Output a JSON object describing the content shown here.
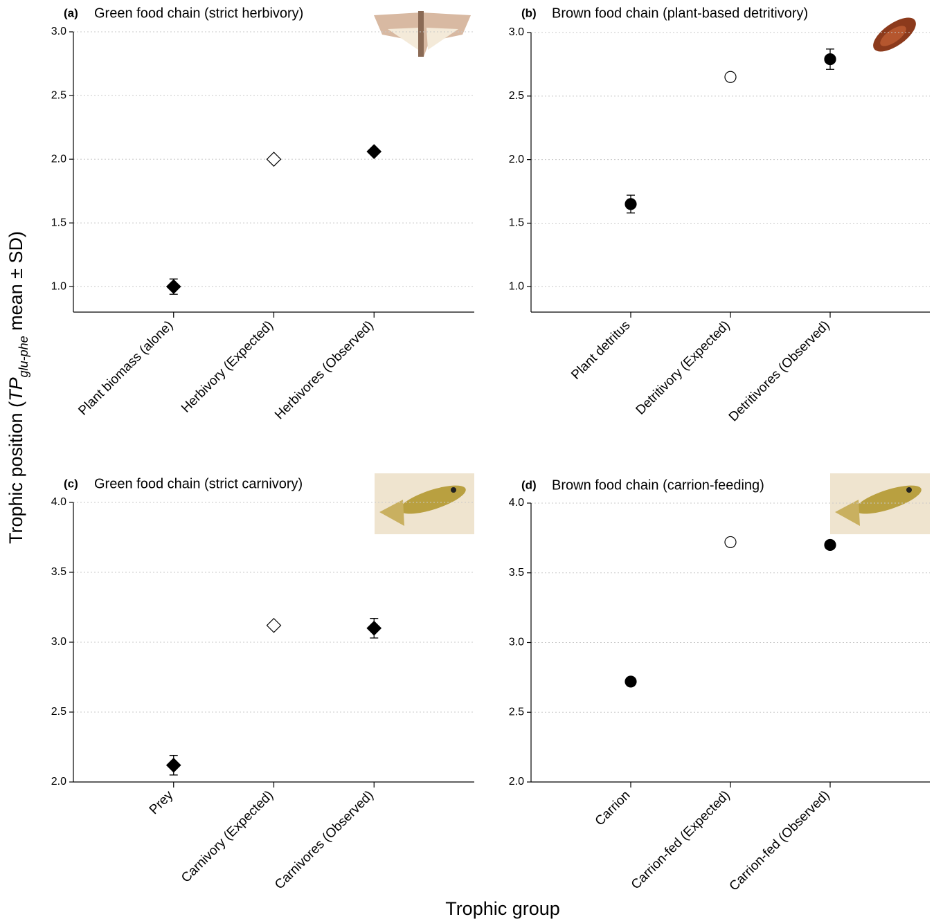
{
  "shared": {
    "y_label": {
      "prefix": "Trophic position (",
      "symbol": "TP",
      "subscript": "glu-phe",
      "suffix": " mean ± SD)"
    },
    "x_label": "Trophic group"
  },
  "chart_data": [
    {
      "type": "dotplot",
      "panel_label": "(a)",
      "title": "Green food chain (strict herbivory)",
      "categories": [
        "Plant biomass (alone)",
        "Herbivory (Expected)",
        "Herbivores (Observed)"
      ],
      "values": [
        1.0,
        2.0,
        2.06
      ],
      "errors": [
        0.06,
        null,
        0.02
      ],
      "filled": [
        true,
        false,
        true
      ],
      "marker": "diamond",
      "color": "#000000",
      "ylim": [
        0.8,
        3.0
      ],
      "yticks": [
        {
          "value": 1,
          "label": "1.0"
        },
        {
          "value": 1.5,
          "label": "1.5"
        },
        {
          "value": 2,
          "label": "2.0"
        },
        {
          "value": 2.5,
          "label": "2.5"
        },
        {
          "value": 3,
          "label": "3.0"
        }
      ],
      "grid": true
    },
    {
      "type": "dotplot",
      "panel_label": "(b)",
      "title": "Brown food chain (plant-based detritivory)",
      "categories": [
        "Plant detritus",
        "Detritivory (Expected)",
        "Detritivores (Observed)"
      ],
      "values": [
        1.65,
        2.65,
        2.79
      ],
      "errors": [
        0.07,
        null,
        0.08
      ],
      "filled": [
        true,
        false,
        true
      ],
      "marker": "circle",
      "color": "#000000",
      "ylim": [
        0.8,
        3.0
      ],
      "yticks": [
        {
          "value": 1,
          "label": "1.0"
        },
        {
          "value": 1.5,
          "label": "1.5"
        },
        {
          "value": 2,
          "label": "2.0"
        },
        {
          "value": 2.5,
          "label": "2.5"
        },
        {
          "value": 3,
          "label": "3.0"
        }
      ],
      "grid": true
    },
    {
      "type": "dotplot",
      "panel_label": "(c)",
      "title": "Green food chain (strict carnivory)",
      "categories": [
        "Prey",
        "Carnivory (Expected)",
        "Carnivores (Observed)"
      ],
      "values": [
        2.12,
        3.12,
        3.1
      ],
      "errors": [
        0.07,
        null,
        0.07
      ],
      "filled": [
        true,
        false,
        true
      ],
      "marker": "diamond",
      "color": "#000000",
      "ylim": [
        2.0,
        4.0
      ],
      "yticks": [
        {
          "value": 2,
          "label": "2.0"
        },
        {
          "value": 2.5,
          "label": "2.5"
        },
        {
          "value": 3,
          "label": "3.0"
        },
        {
          "value": 3.5,
          "label": "3.5"
        },
        {
          "value": 4,
          "label": "4.0"
        }
      ],
      "grid": true
    },
    {
      "type": "dotplot",
      "panel_label": "(d)",
      "title": "Brown food chain (carrion-feeding)",
      "categories": [
        "Carrion",
        "Carrion-fed (Expected)",
        "Carrion-fed (Observed)"
      ],
      "values": [
        2.72,
        3.72,
        3.7
      ],
      "errors": [
        null,
        null,
        null
      ],
      "filled": [
        true,
        false,
        true
      ],
      "marker": "circle",
      "color": "#000000",
      "ylim": [
        2.0,
        4.0
      ],
      "yticks": [
        {
          "value": 2,
          "label": "2.0"
        },
        {
          "value": 2.5,
          "label": "2.5"
        },
        {
          "value": 3,
          "label": "3.0"
        },
        {
          "value": 3.5,
          "label": "3.5"
        },
        {
          "value": 4,
          "label": "4.0"
        }
      ],
      "grid": true
    }
  ]
}
